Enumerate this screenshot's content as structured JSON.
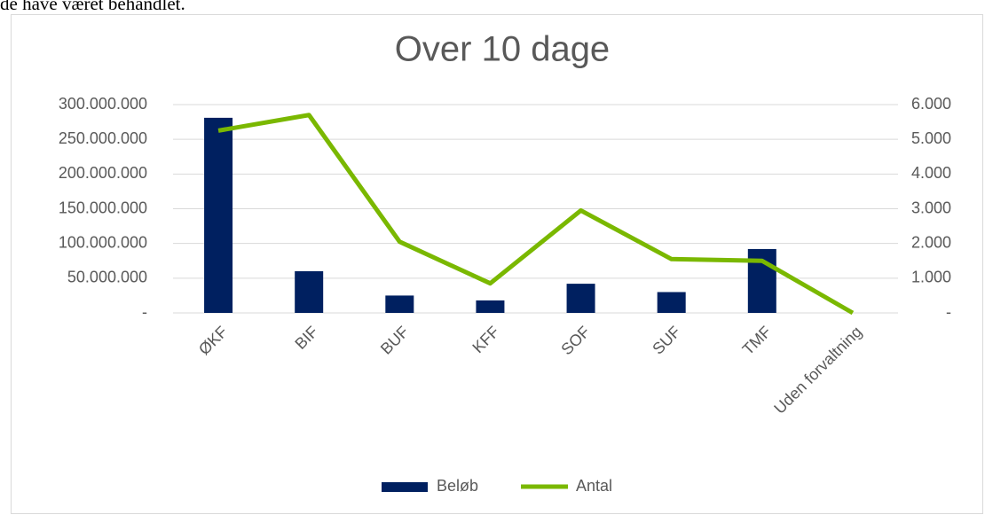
{
  "intro_text": "de have været behandlet.",
  "chart_data": {
    "type": "bar_line",
    "title": "Over 10 dage",
    "categories": [
      "ØKF",
      "BIF",
      "BUF",
      "KFF",
      "SOF",
      "SUF",
      "TMF",
      "Uden forvaltning"
    ],
    "series": [
      {
        "name": "Beløb",
        "type": "bar",
        "color": "#002060",
        "values": [
          281000000,
          60000000,
          25000000,
          18000000,
          42000000,
          30000000,
          92000000,
          0
        ]
      },
      {
        "name": "Antal",
        "type": "line",
        "axis": "y2",
        "color": "#7ab800",
        "values": [
          5250,
          5700,
          2050,
          850,
          2950,
          1550,
          1500,
          0
        ]
      }
    ],
    "ylim": [
      0,
      300000000
    ],
    "yticks": [
      {
        "value": 0,
        "label": "-"
      },
      {
        "value": 50000000,
        "label": "50.000.000"
      },
      {
        "value": 100000000,
        "label": "100.000.000"
      },
      {
        "value": 150000000,
        "label": "150.000.000"
      },
      {
        "value": 200000000,
        "label": "200.000.000"
      },
      {
        "value": 250000000,
        "label": "250.000.000"
      },
      {
        "value": 300000000,
        "label": "300.000.000"
      }
    ],
    "y2lim": [
      0,
      6000
    ],
    "y2ticks": [
      {
        "value": 0,
        "label": "-"
      },
      {
        "value": 1000,
        "label": "1.000"
      },
      {
        "value": 2000,
        "label": "2.000"
      },
      {
        "value": 3000,
        "label": "3.000"
      },
      {
        "value": 4000,
        "label": "4.000"
      },
      {
        "value": 5000,
        "label": "5.000"
      },
      {
        "value": 6000,
        "label": "6.000"
      }
    ],
    "grid": true,
    "legend": "bottom"
  }
}
